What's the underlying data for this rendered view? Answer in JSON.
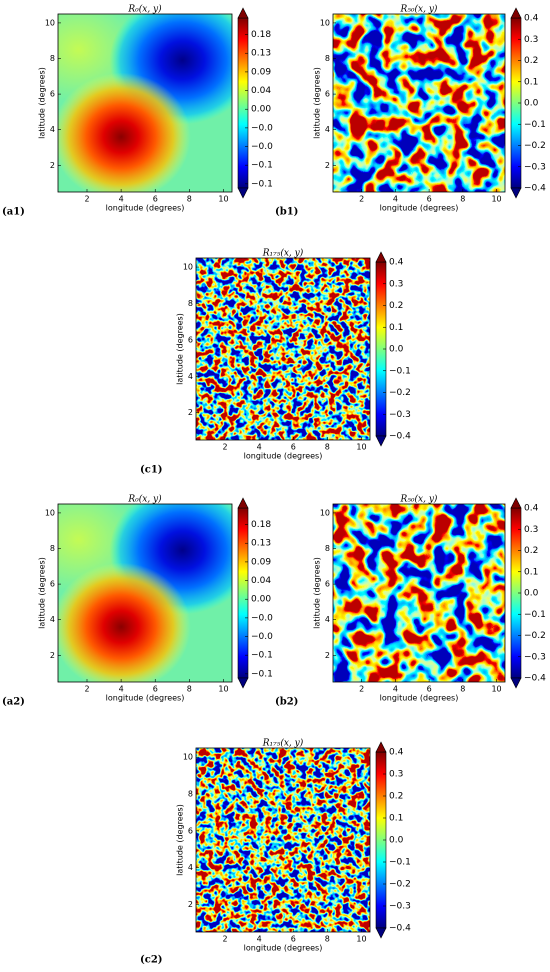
{
  "chart_data": [
    {
      "type": "heatmap",
      "label": "(a1)",
      "title": "R₀(x, y)",
      "xlabel": "longitude (degrees)",
      "ylabel": "latitude (degrees)",
      "xlim": [
        0.3,
        10.5
      ],
      "ylim": [
        0.5,
        10.5
      ],
      "xticks": [
        2,
        4,
        6,
        8,
        10
      ],
      "yticks": [
        2,
        4,
        6,
        8,
        10
      ],
      "clim": [
        -0.19,
        0.22
      ],
      "cticks": [
        {
          "value": 0.18,
          "label": "0.18"
        },
        {
          "value": 0.135,
          "label": "0.13"
        },
        {
          "value": 0.09,
          "label": "0.09"
        },
        {
          "value": 0.045,
          "label": "0.04"
        },
        {
          "value": 0,
          "label": "0.00"
        },
        {
          "value": -0.045,
          "label": "−0.0"
        },
        {
          "value": -0.09,
          "label": "−0.0"
        },
        {
          "value": -0.135,
          "label": "−0.1"
        },
        {
          "value": -0.18,
          "label": "−0.1"
        }
      ]
    },
    {
      "type": "heatmap",
      "label": "(b1)",
      "title": "R₅₀(x, y)",
      "xlabel": "longitude (degrees)",
      "ylabel": "latitude (degrees)",
      "xlim": [
        0.3,
        10.5
      ],
      "ylim": [
        0.5,
        10.5
      ],
      "xticks": [
        2,
        4,
        6,
        8,
        10
      ],
      "yticks": [
        2,
        4,
        6,
        8,
        10
      ],
      "clim": [
        -0.4,
        0.4
      ],
      "cticks": [
        0.4,
        0.3,
        0.2,
        0.1,
        {
          "value": 0,
          "label": "0.0"
        },
        {
          "value": -0.1,
          "label": "−0.1"
        },
        {
          "value": -0.2,
          "label": "−0.2"
        },
        {
          "value": -0.3,
          "label": "−0.3"
        },
        {
          "value": -0.4,
          "label": "−0.4"
        }
      ]
    },
    {
      "type": "heatmap",
      "label": "(c1)",
      "title": "R₁₇₅(x, y)",
      "xlabel": "longitude (degrees)",
      "ylabel": "latitude (degrees)",
      "xlim": [
        0.3,
        10.5
      ],
      "ylim": [
        0.5,
        10.5
      ],
      "xticks": [
        2,
        4,
        6,
        8,
        10
      ],
      "yticks": [
        2,
        4,
        6,
        8,
        10
      ],
      "clim": [
        -0.4,
        0.4
      ],
      "cticks": [
        0.4,
        0.3,
        0.2,
        0.1,
        {
          "value": 0,
          "label": "0.0"
        },
        {
          "value": -0.1,
          "label": "−0.1"
        },
        {
          "value": -0.2,
          "label": "−0.2"
        },
        {
          "value": -0.3,
          "label": "−0.3"
        },
        {
          "value": -0.4,
          "label": "−0.4"
        }
      ]
    },
    {
      "type": "heatmap",
      "label": "(a2)",
      "title": "R₀(x, y)",
      "xlabel": "longitude (degrees)",
      "ylabel": "latitude (degrees)",
      "xlim": [
        0.3,
        10.5
      ],
      "ylim": [
        0.5,
        10.5
      ],
      "xticks": [
        2,
        4,
        6,
        8,
        10
      ],
      "yticks": [
        2,
        4,
        6,
        8,
        10
      ],
      "clim": [
        -0.19,
        0.22
      ],
      "cticks": [
        {
          "value": 0.18,
          "label": "0.18"
        },
        {
          "value": 0.135,
          "label": "0.13"
        },
        {
          "value": 0.09,
          "label": "0.09"
        },
        {
          "value": 0.045,
          "label": "0.04"
        },
        {
          "value": 0,
          "label": "0.00"
        },
        {
          "value": -0.045,
          "label": "−0.0"
        },
        {
          "value": -0.09,
          "label": "−0.0"
        },
        {
          "value": -0.135,
          "label": "−0.1"
        },
        {
          "value": -0.18,
          "label": "−0.1"
        }
      ]
    },
    {
      "type": "heatmap",
      "label": "(b2)",
      "title": "R₅₀(x, y)",
      "xlabel": "longitude (degrees)",
      "ylabel": "latitude (degrees)",
      "xlim": [
        0.3,
        10.5
      ],
      "ylim": [
        0.5,
        10.5
      ],
      "xticks": [
        2,
        4,
        6,
        8,
        10
      ],
      "yticks": [
        2,
        4,
        6,
        8,
        10
      ],
      "clim": [
        -0.4,
        0.4
      ],
      "cticks": [
        0.4,
        0.3,
        0.2,
        0.1,
        {
          "value": 0,
          "label": "0.0"
        },
        {
          "value": -0.1,
          "label": "−0.1"
        },
        {
          "value": -0.2,
          "label": "−0.2"
        },
        {
          "value": -0.3,
          "label": "−0.3"
        },
        {
          "value": -0.4,
          "label": "−0.4"
        }
      ]
    },
    {
      "type": "heatmap",
      "label": "(c2)",
      "title": "R₁₇₅(x, y)",
      "xlabel": "longitude (degrees)",
      "ylabel": "latitude (degrees)",
      "xlim": [
        0.3,
        10.5
      ],
      "ylim": [
        0.5,
        10.5
      ],
      "xticks": [
        2,
        4,
        6,
        8,
        10
      ],
      "yticks": [
        2,
        4,
        6,
        8,
        10
      ],
      "clim": [
        -0.4,
        0.4
      ],
      "cticks": [
        0.4,
        0.3,
        0.2,
        0.1,
        {
          "value": 0,
          "label": "0.0"
        },
        {
          "value": -0.1,
          "label": "−0.1"
        },
        {
          "value": -0.2,
          "label": "−0.2"
        },
        {
          "value": -0.3,
          "label": "−0.3"
        },
        {
          "value": -0.4,
          "label": "−0.4"
        }
      ]
    }
  ]
}
